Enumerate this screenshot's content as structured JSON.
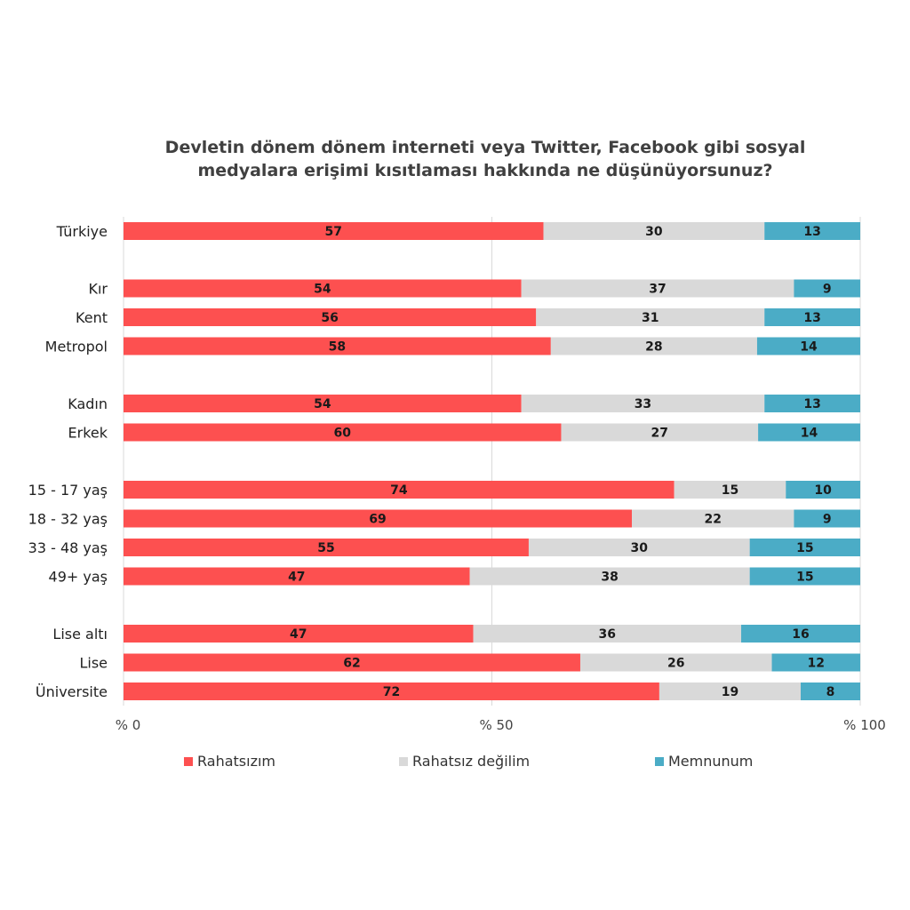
{
  "chart_data": {
    "type": "bar",
    "orientation": "horizontal",
    "stacked": true,
    "title": "Devletin dönem dönem interneti veya Twitter, Facebook gibi sosyal medyalara erişimi kısıtlaması hakkında ne düşünüyorsunuz?",
    "title_lines": [
      "Devletin dönem dönem interneti veya Twitter, Facebook gibi sosyal",
      "medyalara erişimi kısıtlaması hakkında ne düşünüyorsunuz?"
    ],
    "xlim": [
      0,
      100
    ],
    "x_ticks": [
      {
        "value": 0,
        "label": "% 0"
      },
      {
        "value": 50,
        "label": "% 50"
      },
      {
        "value": 100,
        "label": "% 100"
      }
    ],
    "legend_position": "bottom",
    "series": [
      {
        "name": "Rahatsızım",
        "color": "#fd5050"
      },
      {
        "name": "Rahatsız değilim",
        "color": "#d9d9d9"
      },
      {
        "name": "Memnunum",
        "color": "#4bacc6"
      }
    ],
    "groups": [
      {
        "rows": [
          {
            "label": "Türkiye",
            "values": [
              57,
              30,
              13
            ]
          }
        ]
      },
      {
        "rows": [
          {
            "label": "Kır",
            "values": [
              54,
              37,
              9
            ]
          },
          {
            "label": "Kent",
            "values": [
              56,
              31,
              13
            ]
          },
          {
            "label": "Metropol",
            "values": [
              58,
              28,
              14
            ]
          }
        ]
      },
      {
        "rows": [
          {
            "label": "Kadın",
            "values": [
              54,
              33,
              13
            ]
          },
          {
            "label": "Erkek",
            "values": [
              60,
              27,
              14
            ]
          }
        ]
      },
      {
        "rows": [
          {
            "label": "15 - 17 yaş",
            "values": [
              74,
              15,
              10
            ]
          },
          {
            "label": "18 - 32 yaş",
            "values": [
              69,
              22,
              9
            ]
          },
          {
            "label": "33 - 48 yaş",
            "values": [
              55,
              30,
              15
            ]
          },
          {
            "label": "49+ yaş",
            "values": [
              47,
              38,
              15
            ]
          }
        ]
      },
      {
        "rows": [
          {
            "label": "Lise altı",
            "values": [
              47,
              36,
              16
            ]
          },
          {
            "label": "Lise",
            "values": [
              62,
              26,
              12
            ]
          },
          {
            "label": "Üniversite",
            "values": [
              72,
              19,
              8
            ]
          }
        ]
      }
    ]
  }
}
